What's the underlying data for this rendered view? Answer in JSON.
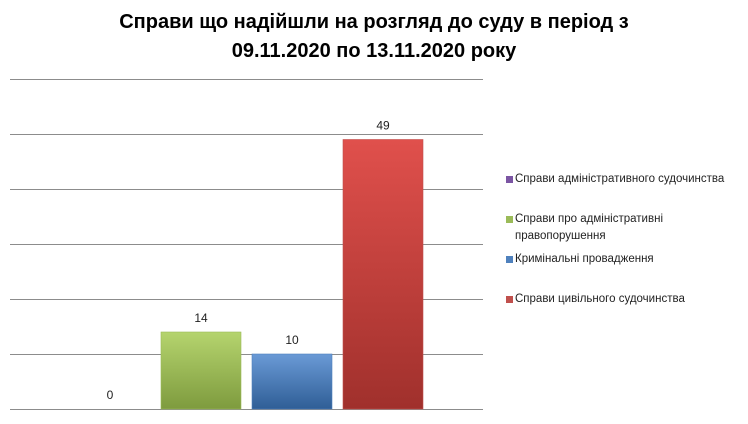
{
  "chart_data": {
    "type": "bar",
    "title_line1": "Справи що надійшли на розгляд до суду в період з",
    "title_line2": "09.11.2020  по 13.11.2020 року",
    "categories": [
      "Справи адміністративного судочинства",
      "Справи про адміністративні правопорушення",
      "Кримінальні провадження",
      "Справи цивільного судочинства"
    ],
    "values": [
      0,
      14,
      10,
      49
    ],
    "value_labels": [
      "0",
      "14",
      "10",
      "49"
    ],
    "colors": [
      "#7B55A3",
      "#9BBB59",
      "#4F81BD",
      "#C0504D"
    ],
    "ylim": [
      0,
      60
    ],
    "grid": true,
    "legend_position": "right"
  }
}
